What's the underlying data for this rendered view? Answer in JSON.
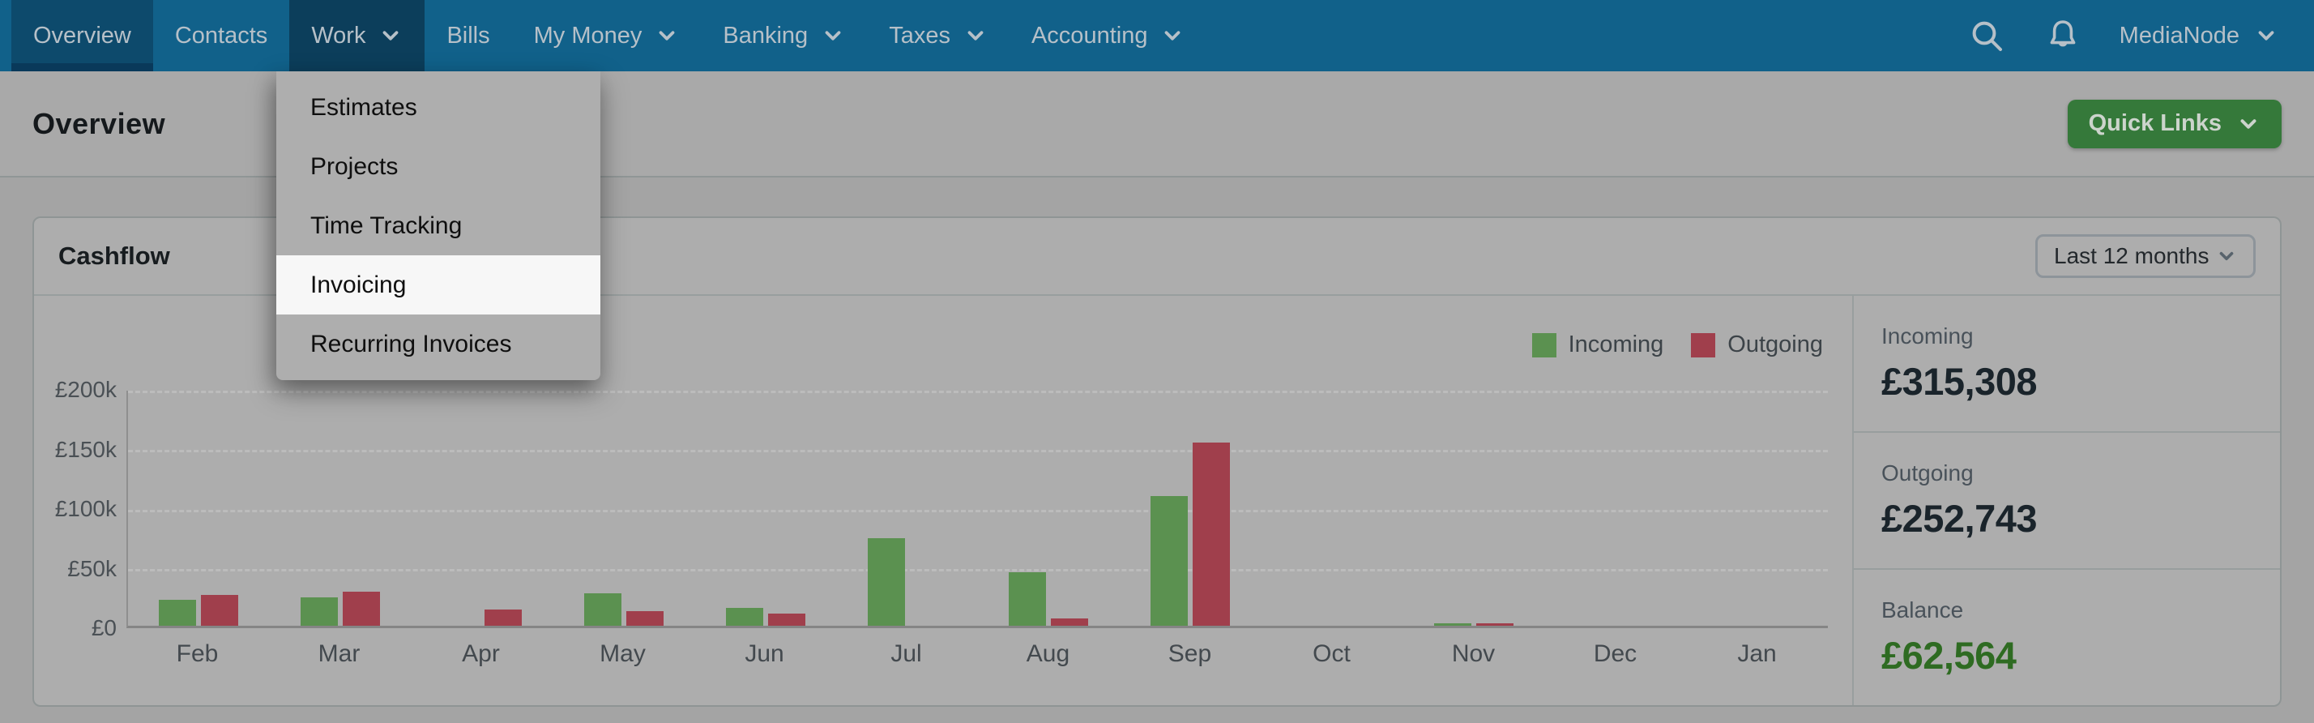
{
  "navbar": {
    "items": [
      {
        "label": "Overview",
        "state": "active",
        "has_dropdown": false
      },
      {
        "label": "Contacts",
        "state": "normal",
        "has_dropdown": false
      },
      {
        "label": "Work",
        "state": "open",
        "has_dropdown": true
      },
      {
        "label": "Bills",
        "state": "normal",
        "has_dropdown": false
      },
      {
        "label": "My Money",
        "state": "normal",
        "has_dropdown": true
      },
      {
        "label": "Banking",
        "state": "normal",
        "has_dropdown": true
      },
      {
        "label": "Taxes",
        "state": "normal",
        "has_dropdown": true
      },
      {
        "label": "Accounting",
        "state": "normal",
        "has_dropdown": true
      }
    ],
    "icons": [
      {
        "name": "search-icon"
      },
      {
        "name": "notifications-bell-icon"
      }
    ],
    "account": {
      "label": "MediaNode",
      "has_dropdown": true
    }
  },
  "work_menu": {
    "items": [
      {
        "label": "Estimates",
        "state": "normal"
      },
      {
        "label": "Projects",
        "state": "normal"
      },
      {
        "label": "Time Tracking",
        "state": "normal"
      },
      {
        "label": "Invoicing",
        "state": "highlighted"
      },
      {
        "label": "Recurring Invoices",
        "state": "normal"
      }
    ]
  },
  "page": {
    "title": "Overview",
    "quick_links_label": "Quick Links"
  },
  "cashflow": {
    "title": "Cashflow",
    "period_selector_value": "Last 12 months",
    "legend": [
      {
        "label": "Incoming",
        "color": "#5b9150"
      },
      {
        "label": "Outgoing",
        "color": "#a03f4c"
      }
    ],
    "summary": [
      {
        "label": "Incoming",
        "value": "£315,308",
        "color": "#1a242b"
      },
      {
        "label": "Outgoing",
        "value": "£252,743",
        "color": "#1a242b"
      },
      {
        "label": "Balance",
        "value": "£62,564",
        "color": "#2e6b22"
      }
    ]
  },
  "chart_data": {
    "type": "bar",
    "title": "Cashflow",
    "currency": "£",
    "categories": [
      "Feb",
      "Mar",
      "Apr",
      "May",
      "Jun",
      "Jul",
      "Aug",
      "Sep",
      "Oct",
      "Nov",
      "Dec",
      "Jan"
    ],
    "series": [
      {
        "name": "Incoming",
        "color": "#5b9150",
        "values": [
          22000,
          24000,
          0,
          27000,
          15000,
          74000,
          45000,
          109000,
          0,
          2000,
          0,
          0
        ]
      },
      {
        "name": "Outgoing",
        "color": "#a03f4c",
        "values": [
          26000,
          29000,
          14000,
          12000,
          10000,
          0,
          6000,
          154000,
          0,
          2000,
          0,
          0
        ]
      }
    ],
    "ylabel_ticks": [
      "£200k",
      "£150k",
      "£100k",
      "£50k",
      "£0"
    ],
    "ylim": [
      0,
      200000
    ],
    "grid": "dashed-horizontal",
    "legend_position": "top-right"
  }
}
